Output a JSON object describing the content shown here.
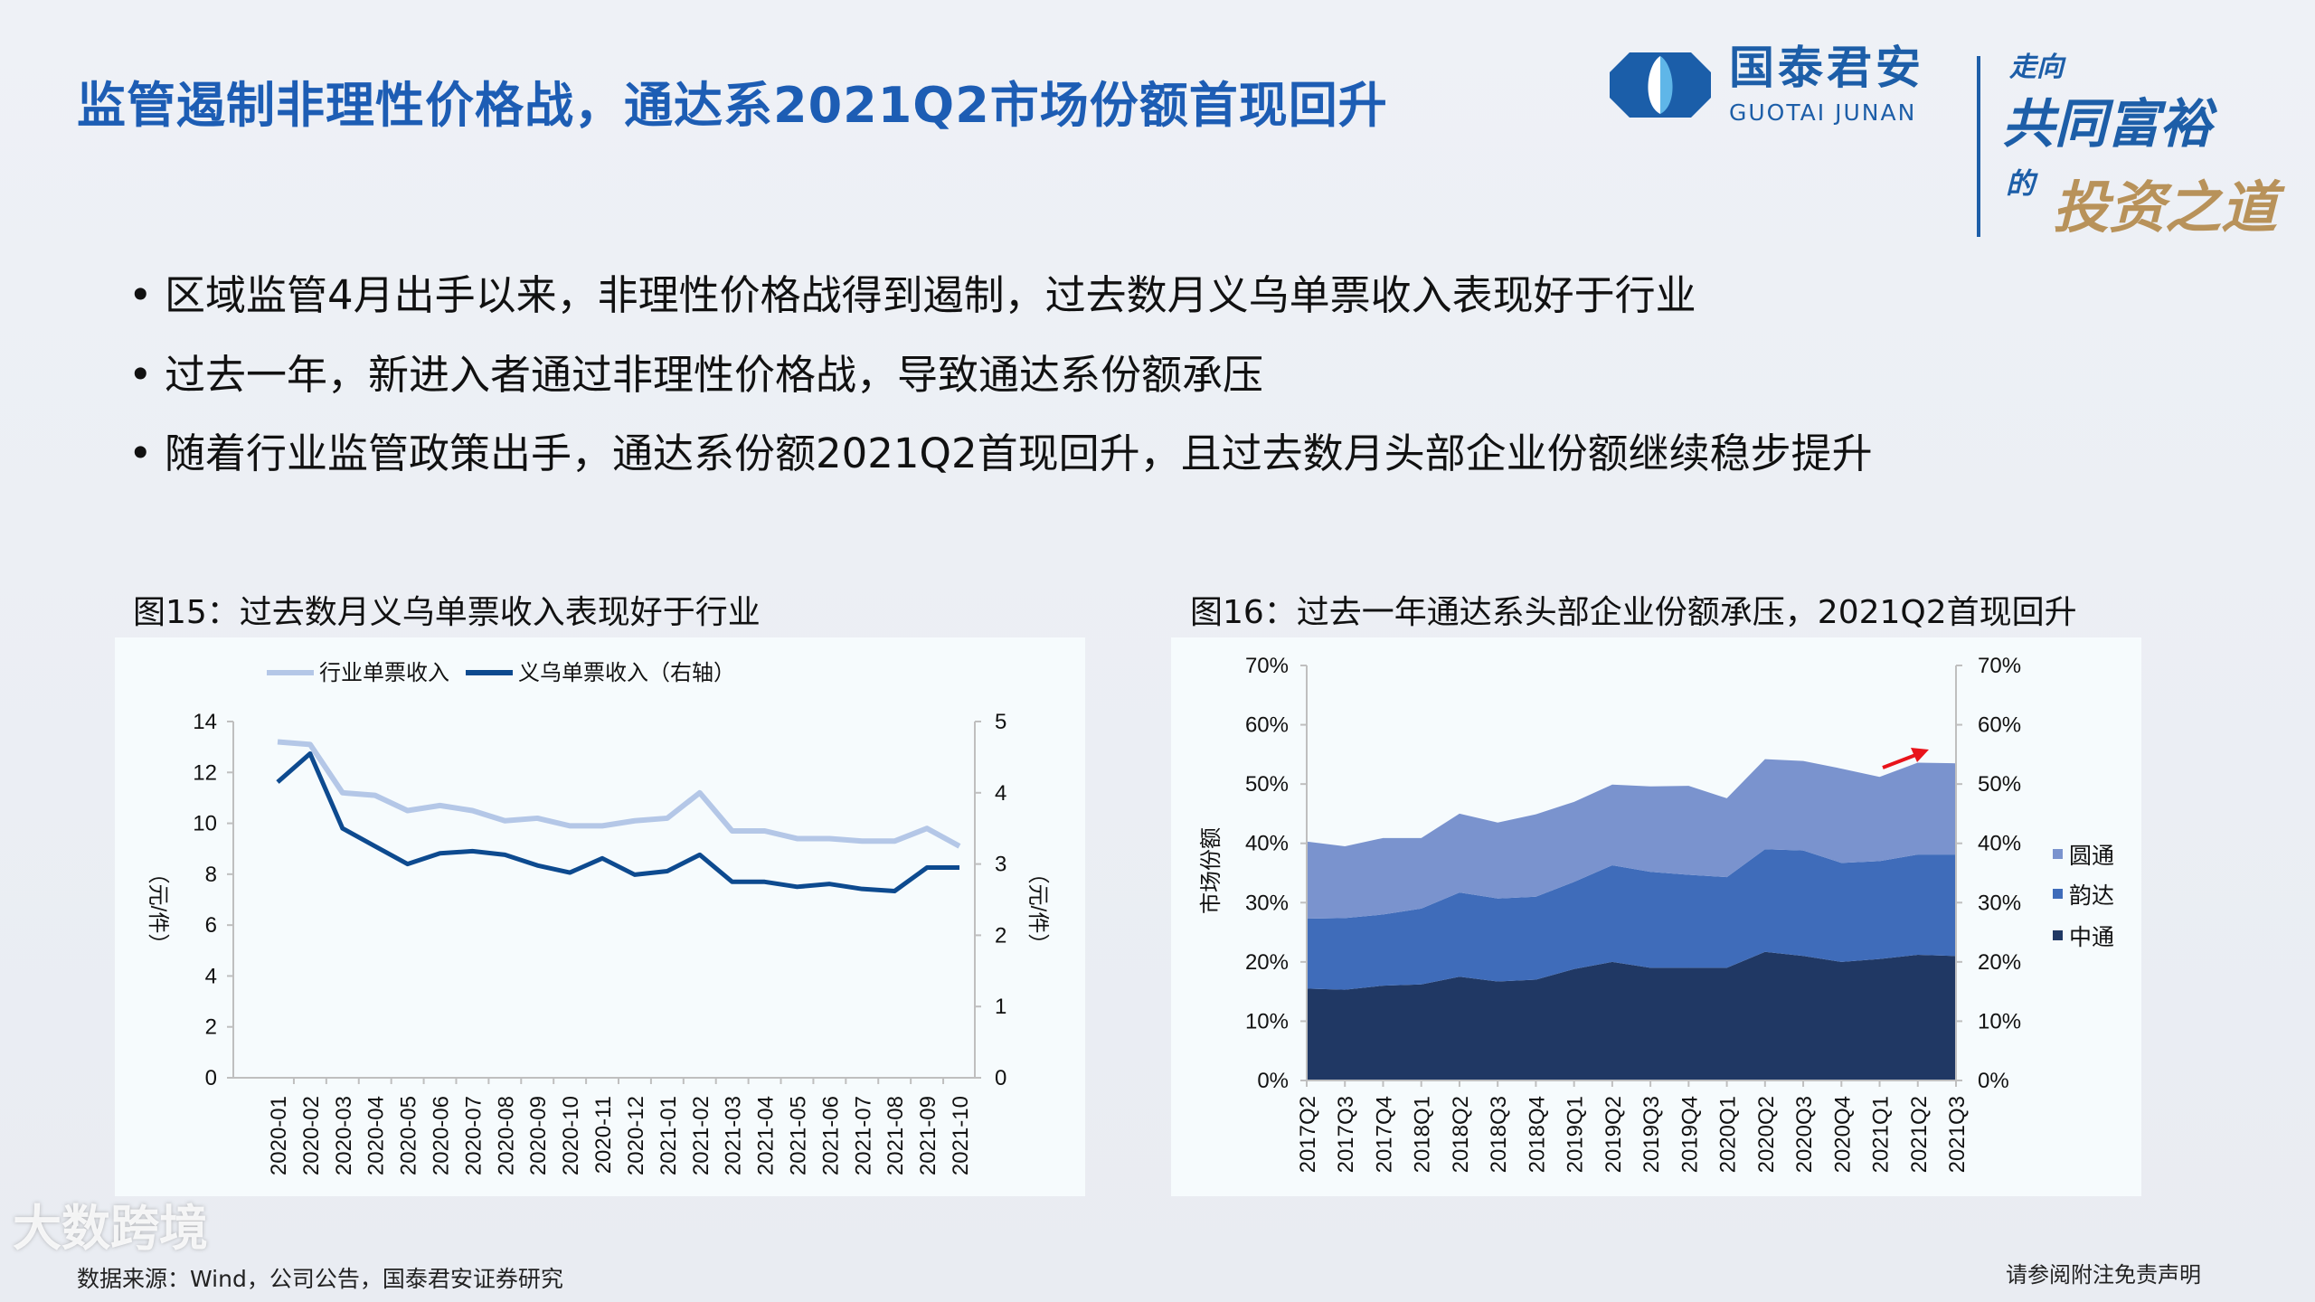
{
  "header": {
    "title": "监管遏制非理性价格战，通达系2021Q2市场份额首现回升",
    "logo_cn": "国泰君安",
    "logo_en": "GUOTAI JUNAN",
    "slogan_line1": "走向",
    "slogan_line2": "共同富裕",
    "slogan_line3": "的",
    "slogan_line4": "投资之道"
  },
  "bullets": [
    "区域监管4月出手以来，非理性价格战得到遏制，过去数月义乌单票收入表现好于行业",
    "过去一年，新进入者通过非理性价格战，导致通达系份额承压",
    "随着行业监管政策出手，通达系份额2021Q2首现回升，且过去数月头部企业份额继续稳步提升"
  ],
  "bullet_symbol": "•",
  "footer": {
    "source": "数据来源：Wind，公司公告，国泰君安证券研究",
    "disclaimer": "请参阅附注免责声明",
    "watermark": "大数跨境"
  },
  "chart_data": [
    {
      "type": "line",
      "title": "图15：过去数月义乌单票收入表现好于行业",
      "categories": [
        "2020-01",
        "2020-02",
        "2020-03",
        "2020-04",
        "2020-05",
        "2020-06",
        "2020-07",
        "2020-08",
        "2020-09",
        "2020-10",
        "2020-11",
        "2020-12",
        "2021-01",
        "2021-02",
        "2021-03",
        "2021-04",
        "2021-05",
        "2021-06",
        "2021-07",
        "2021-08",
        "2021-09",
        "2021-10"
      ],
      "series": [
        {
          "name": "行业单票收入",
          "axis": "left",
          "color": "#b4c7e7",
          "values": [
            13.2,
            13.1,
            11.2,
            11.1,
            10.5,
            10.7,
            10.5,
            10.1,
            10.2,
            9.9,
            9.9,
            10.1,
            10.2,
            11.2,
            9.7,
            9.7,
            9.4,
            9.4,
            9.3,
            9.3,
            9.8,
            9.1
          ]
        },
        {
          "name": "义乌单票收入（右轴）",
          "axis": "right",
          "color": "#0d4a8f",
          "values": [
            4.15,
            4.55,
            3.5,
            3.25,
            3.0,
            3.15,
            3.18,
            3.13,
            2.98,
            2.88,
            3.08,
            2.85,
            2.9,
            3.13,
            2.75,
            2.75,
            2.68,
            2.72,
            2.65,
            2.62,
            2.95,
            2.95
          ]
        }
      ],
      "ylabel": "（元/件）",
      "y2label": "（元/件）",
      "ylim": [
        0,
        14
      ],
      "y2lim": [
        0,
        5
      ],
      "yticks": [
        "0",
        "2",
        "4",
        "6",
        "8",
        "10",
        "12",
        "14"
      ],
      "y2ticks": [
        "0",
        "1",
        "2",
        "3",
        "4",
        "5"
      ],
      "legend": "top",
      "grid": false
    },
    {
      "type": "area",
      "stacked": true,
      "title": "图16：过去一年通达系头部企业份额承压，2021Q2首现回升",
      "categories": [
        "2017Q2",
        "2017Q3",
        "2017Q4",
        "2018Q1",
        "2018Q2",
        "2018Q3",
        "2018Q4",
        "2019Q1",
        "2019Q2",
        "2019Q3",
        "2019Q4",
        "2020Q1",
        "2020Q2",
        "2020Q3",
        "2020Q4",
        "2021Q1",
        "2021Q2",
        "2021Q3"
      ],
      "series": [
        {
          "name": "中通",
          "color": "#203864",
          "values": [
            15.5,
            15.3,
            16.0,
            16.2,
            17.5,
            16.7,
            17.0,
            18.8,
            20.0,
            19.0,
            19.0,
            19.0,
            21.7,
            21.0,
            20.0,
            20.5,
            21.2,
            21.0
          ]
        },
        {
          "name": "韵达",
          "color": "#3f6cba",
          "values": [
            11.8,
            12.1,
            12.0,
            12.8,
            14.2,
            14.0,
            14.0,
            14.7,
            16.3,
            16.2,
            15.7,
            15.3,
            17.3,
            17.8,
            16.7,
            16.5,
            16.9,
            17.1
          ]
        },
        {
          "name": "圆通",
          "color": "#7a93ce",
          "values": [
            13.0,
            12.1,
            12.9,
            11.9,
            13.3,
            12.8,
            13.9,
            13.5,
            13.6,
            14.4,
            15.0,
            13.3,
            15.2,
            15.1,
            15.9,
            14.2,
            15.5,
            15.4
          ]
        }
      ],
      "ylabel": "市场份额",
      "ylim": [
        0,
        70
      ],
      "yticks": [
        "0%",
        "10%",
        "20%",
        "30%",
        "40%",
        "50%",
        "60%",
        "70%"
      ],
      "legend": "right",
      "grid": false,
      "annotation": {
        "type": "arrow",
        "color": "#e8141b",
        "from": "2021Q1",
        "to": "2021Q2"
      }
    }
  ]
}
